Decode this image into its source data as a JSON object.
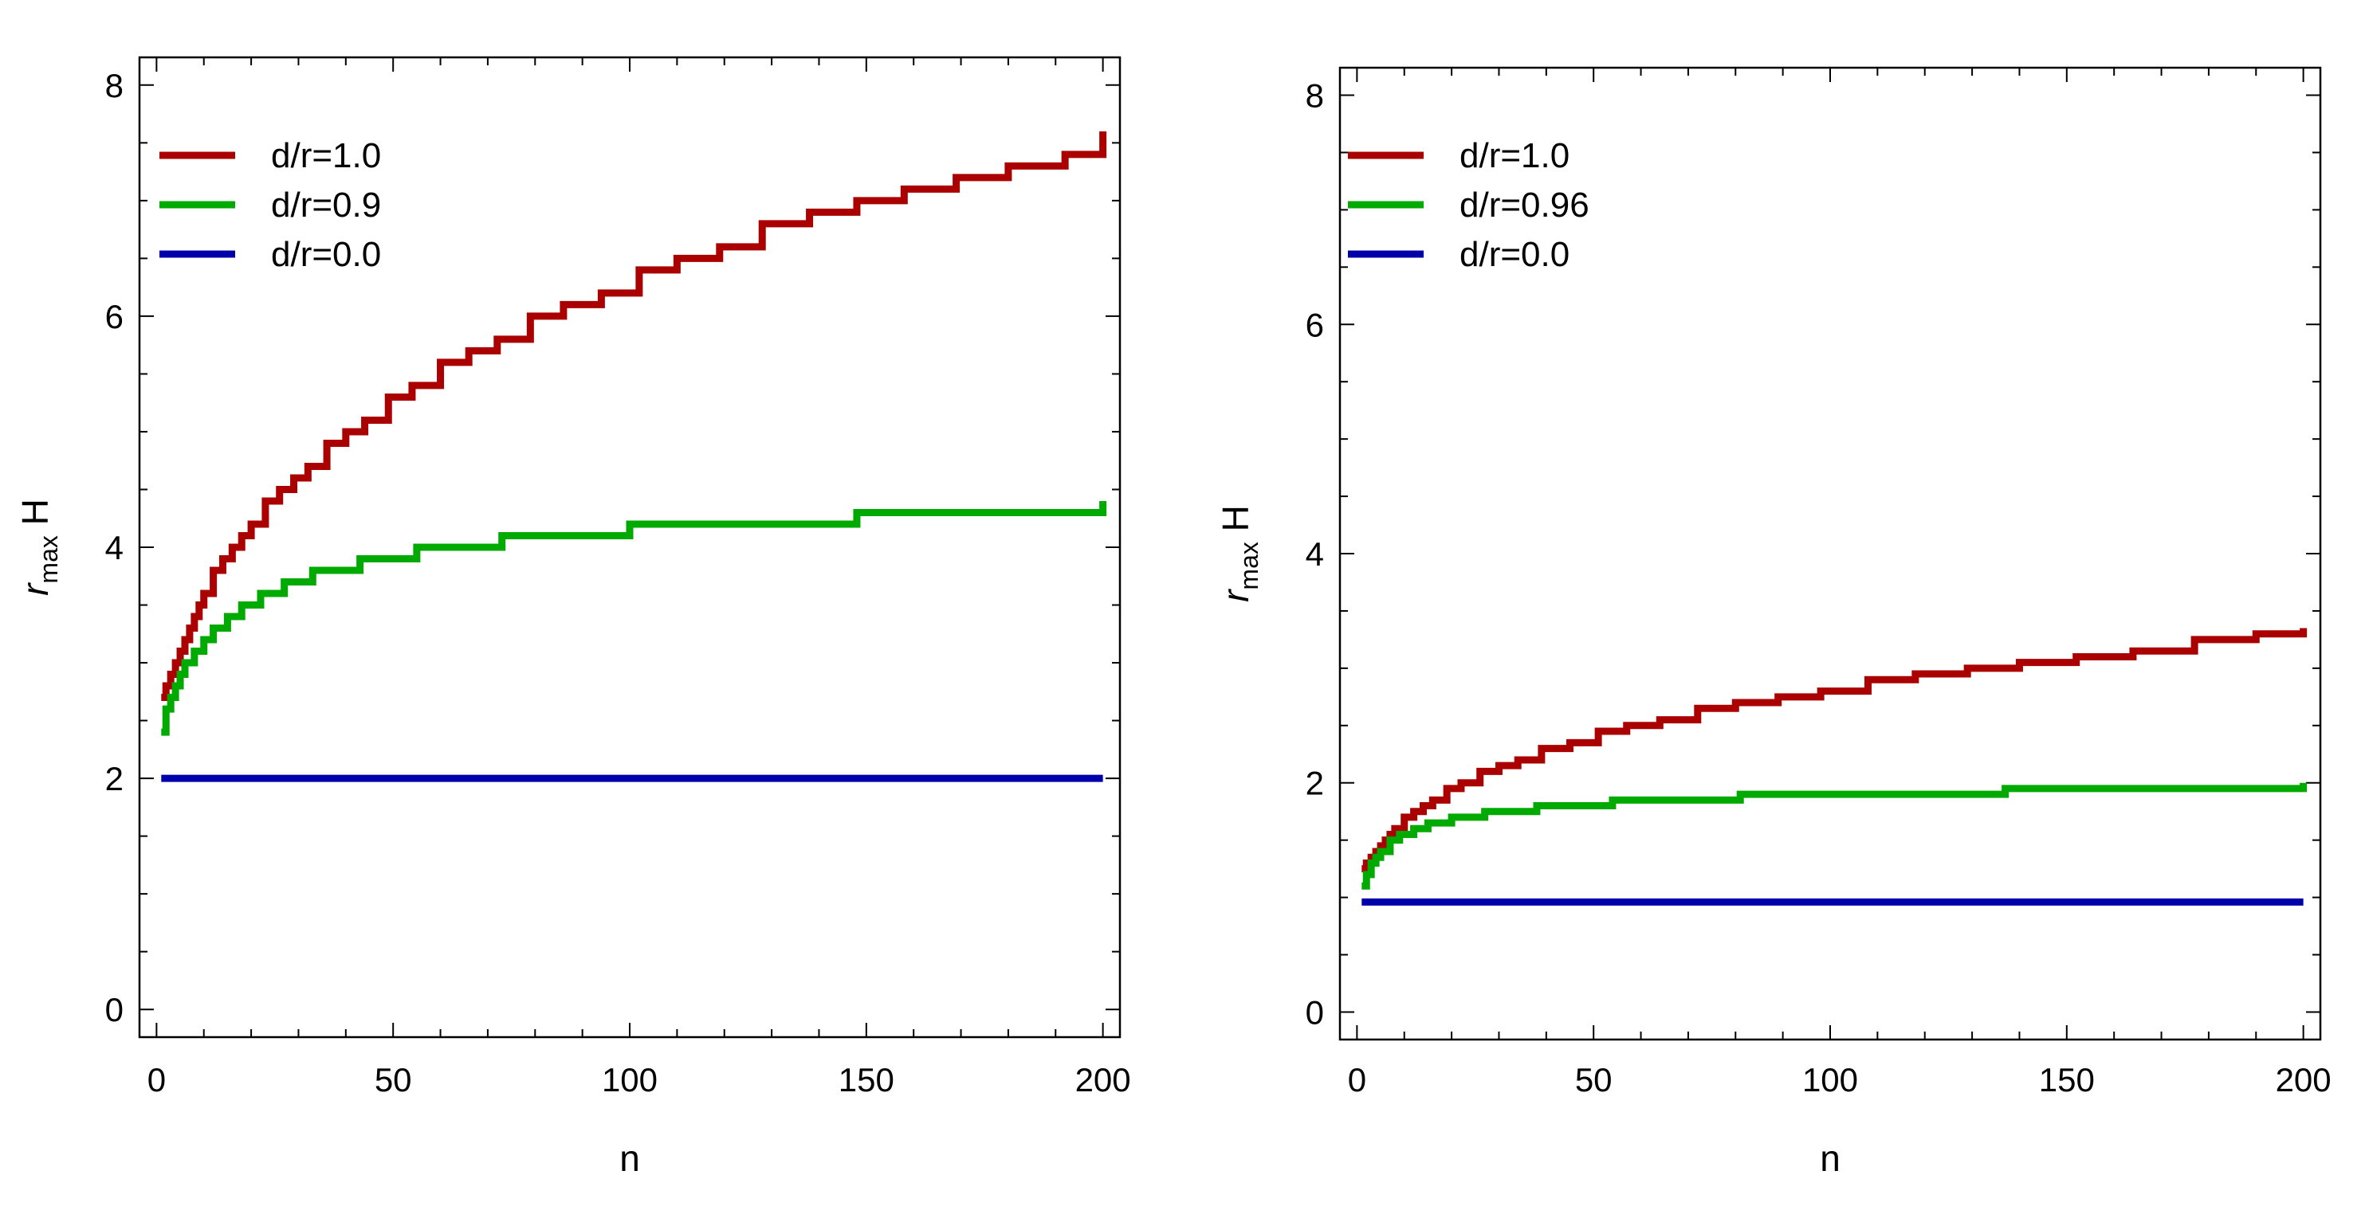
{
  "chart_data": [
    {
      "type": "line",
      "step": true,
      "title": "",
      "xlabel": "n",
      "ylabel_main": "r",
      "ylabel_sub": "max",
      "ylabel_suffix": " H",
      "xlim": [
        0,
        200
      ],
      "ylim": [
        0,
        8
      ],
      "xticks": [
        "0",
        "50",
        "100",
        "150",
        "200"
      ],
      "yticks": [
        "0",
        "2",
        "4",
        "6",
        "8"
      ],
      "legend_position": "top-left",
      "series": [
        {
          "name": "d/r=1.0",
          "color": "#aa0000",
          "x": [
            1,
            2,
            3,
            4,
            5,
            6,
            7,
            8,
            9,
            10,
            12,
            14,
            16,
            18,
            20,
            23,
            26,
            29,
            32,
            36,
            40,
            44,
            49,
            54,
            60,
            66,
            72,
            79,
            86,
            94,
            102,
            110,
            119,
            128,
            138,
            148,
            158,
            169,
            180,
            192,
            200
          ],
          "y": [
            2.7,
            2.8,
            2.9,
            3.0,
            3.1,
            3.2,
            3.3,
            3.4,
            3.5,
            3.6,
            3.8,
            3.9,
            4.0,
            4.1,
            4.2,
            4.4,
            4.5,
            4.6,
            4.7,
            4.9,
            5.0,
            5.1,
            5.3,
            5.4,
            5.6,
            5.7,
            5.8,
            6.0,
            6.1,
            6.2,
            6.4,
            6.5,
            6.6,
            6.8,
            6.9,
            7.0,
            7.1,
            7.2,
            7.3,
            7.4,
            7.6
          ]
        },
        {
          "name": "d/r=0.9",
          "color": "#00aa00",
          "x": [
            1,
            2,
            3,
            4,
            5,
            6,
            8,
            10,
            12,
            15,
            18,
            22,
            27,
            33,
            43,
            55,
            73,
            100,
            148,
            200
          ],
          "y": [
            2.4,
            2.6,
            2.7,
            2.8,
            2.9,
            3.0,
            3.1,
            3.2,
            3.3,
            3.4,
            3.5,
            3.6,
            3.7,
            3.8,
            3.9,
            4.0,
            4.1,
            4.2,
            4.3,
            4.4
          ]
        },
        {
          "name": "d/r=0.0",
          "color": "#0000aa",
          "x": [
            1,
            200
          ],
          "y": [
            2.0,
            2.0
          ]
        }
      ]
    },
    {
      "type": "line",
      "step": true,
      "title": "",
      "xlabel": "n",
      "ylabel_main": "r",
      "ylabel_sub": "max",
      "ylabel_suffix": " H",
      "xlim": [
        0,
        200
      ],
      "ylim": [
        0,
        8
      ],
      "xticks": [
        "0",
        "50",
        "100",
        "150",
        "200"
      ],
      "yticks": [
        "0",
        "2",
        "4",
        "6",
        "8"
      ],
      "legend_position": "top-left",
      "series": [
        {
          "name": "d/r=1.0",
          "color": "#aa0000",
          "x": [
            1,
            2,
            3,
            4,
            5,
            6,
            7,
            8,
            10,
            12,
            14,
            16,
            19,
            22,
            26,
            30,
            34,
            39,
            45,
            51,
            57,
            64,
            72,
            80,
            89,
            98,
            108,
            118,
            129,
            140,
            152,
            164,
            177,
            190,
            200
          ],
          "y": [
            1.25,
            1.3,
            1.35,
            1.4,
            1.45,
            1.5,
            1.55,
            1.6,
            1.7,
            1.75,
            1.8,
            1.85,
            1.95,
            2.0,
            2.1,
            2.15,
            2.2,
            2.3,
            2.35,
            2.45,
            2.5,
            2.55,
            2.65,
            2.7,
            2.75,
            2.8,
            2.9,
            2.95,
            3.0,
            3.05,
            3.1,
            3.15,
            3.25,
            3.3,
            3.35
          ]
        },
        {
          "name": "d/r=0.96",
          "color": "#00aa00",
          "x": [
            1,
            2,
            3,
            4,
            5,
            7,
            9,
            12,
            15,
            20,
            27,
            38,
            54,
            81,
            137,
            200
          ],
          "y": [
            1.1,
            1.2,
            1.3,
            1.35,
            1.4,
            1.5,
            1.55,
            1.6,
            1.65,
            1.7,
            1.75,
            1.8,
            1.85,
            1.9,
            1.95,
            2.0
          ]
        },
        {
          "name": "d/r=0.0",
          "color": "#0000aa",
          "x": [
            1,
            200
          ],
          "y": [
            0.96,
            0.96
          ]
        }
      ]
    }
  ]
}
